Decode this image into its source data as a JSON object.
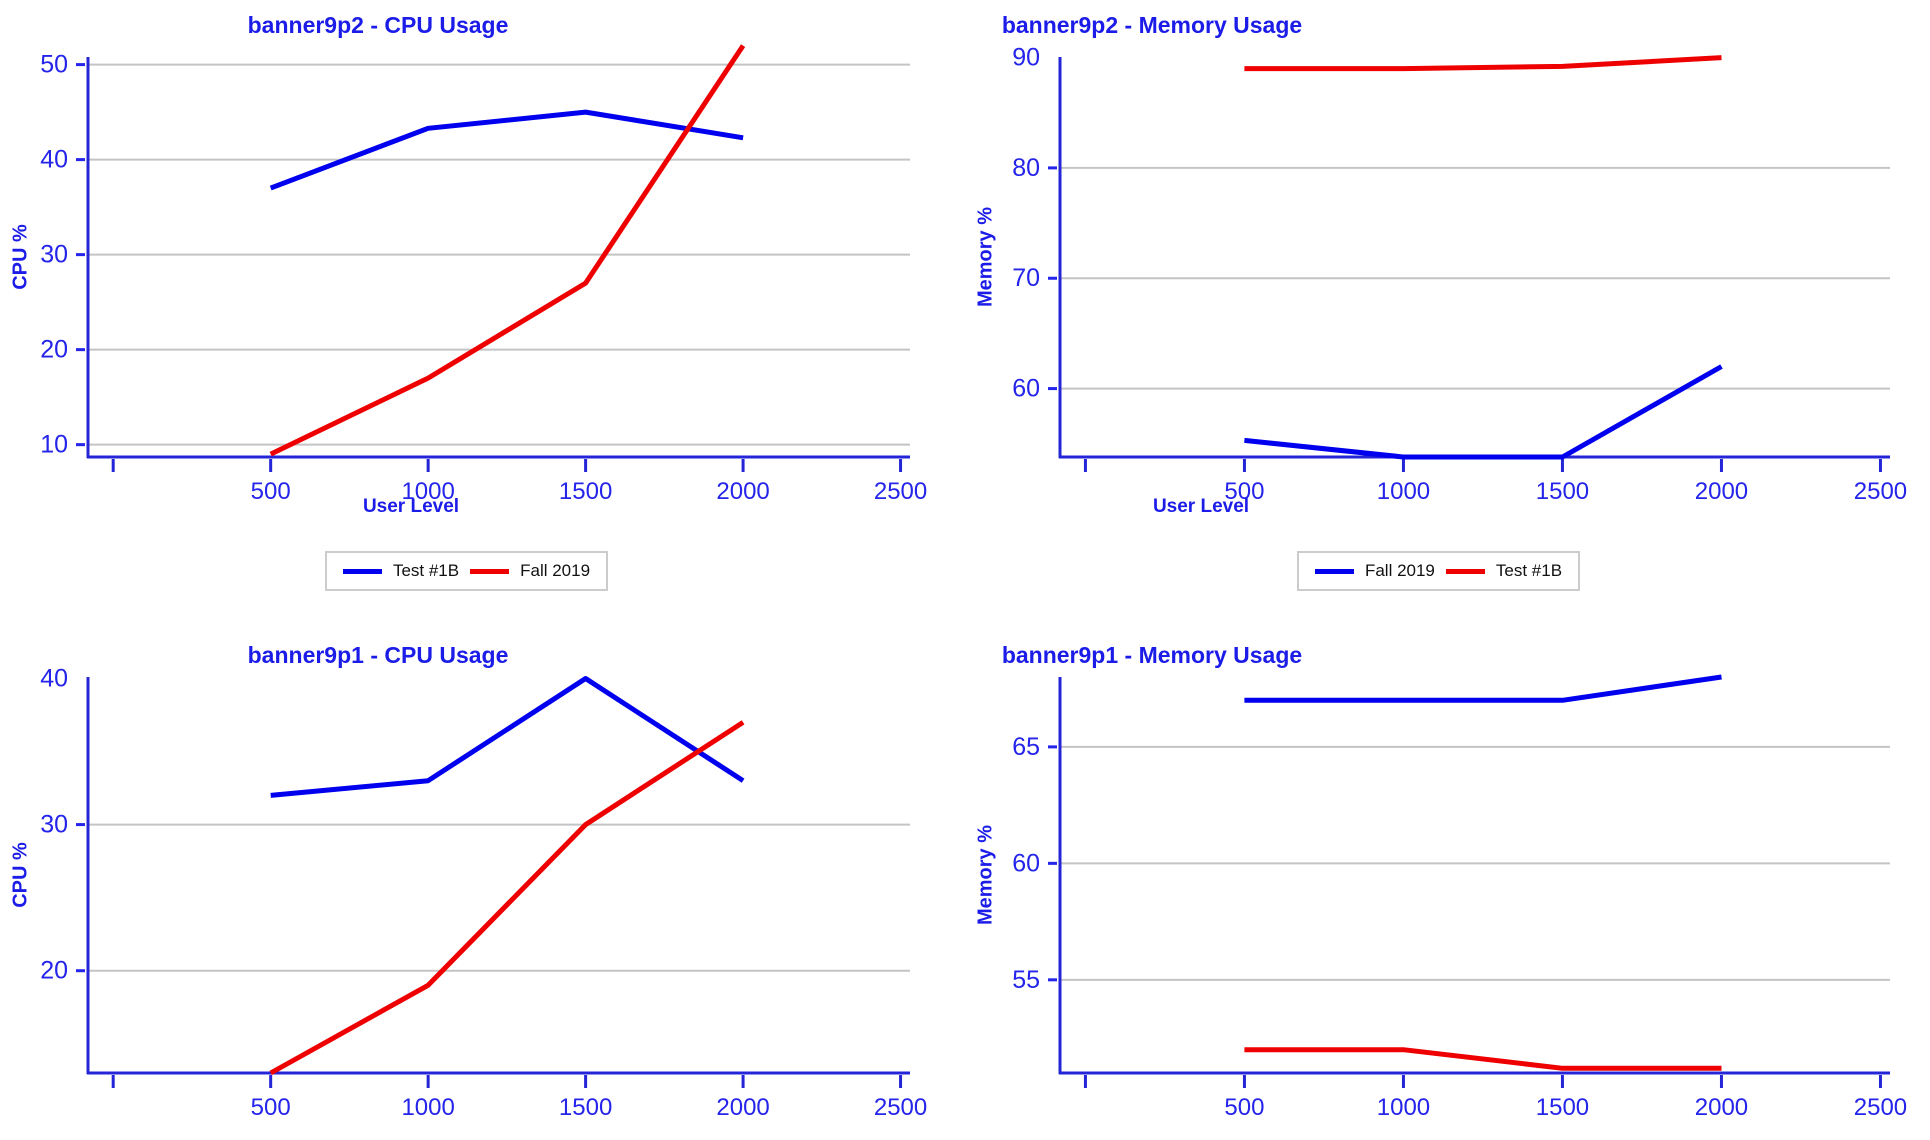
{
  "colors": {
    "blue_line": "#0000ee",
    "red_line": "#ee0000",
    "axis": "#2525d8",
    "grid": "#c4c4c4",
    "title_text": "#1c1ce8",
    "tick_text": "#2424ea",
    "legend_border": "#cccccc",
    "legend_text": "#111111"
  },
  "chart_data": [
    {
      "type": "line",
      "title": "banner9p2 - CPU Usage",
      "ylabel": "CPU %",
      "xlabel": "User Level",
      "x": [
        500,
        1000,
        1500,
        2000
      ],
      "series": [
        {
          "name": "Test #1B",
          "color": "#0000ee",
          "values": [
            37,
            43.3,
            45,
            42.3
          ]
        },
        {
          "name": "Fall 2019",
          "color": "#ee0000",
          "values": [
            9,
            17,
            27,
            52
          ]
        }
      ],
      "xlim": [
        -80,
        2530
      ],
      "ylim": [
        8.7,
        50.8
      ],
      "yticks": [
        {
          "v": 10,
          "grid": true,
          "dash": true
        },
        {
          "v": 20,
          "grid": true,
          "dash": true
        },
        {
          "v": 30,
          "grid": true,
          "dash": true
        },
        {
          "v": 40,
          "grid": true,
          "dash": true
        },
        {
          "v": 50,
          "grid": true,
          "dash": true
        }
      ],
      "xticks": [
        {
          "v": 0,
          "label": ""
        },
        {
          "v": 500,
          "label": "500"
        },
        {
          "v": 1000,
          "label": "1000"
        },
        {
          "v": 1500,
          "label": "1500"
        },
        {
          "v": 2000,
          "label": "2000"
        },
        {
          "v": 2500,
          "label": "2500"
        }
      ],
      "legend_position": "bottom"
    },
    {
      "type": "line",
      "title": "banner9p2 - Memory Usage",
      "ylabel": "Memory %",
      "xlabel": "User Level",
      "x": [
        500,
        1000,
        1500,
        2000
      ],
      "series": [
        {
          "name": "Fall 2019",
          "color": "#0000ee",
          "values": [
            55.3,
            53.8,
            53.8,
            62
          ]
        },
        {
          "name": "Test #1B",
          "color": "#ee0000",
          "values": [
            89,
            89,
            89.2,
            90
          ]
        }
      ],
      "xlim": [
        -80,
        2530
      ],
      "ylim": [
        53.8,
        90.05
      ],
      "yticks": [
        {
          "v": 60,
          "grid": true,
          "dash": true
        },
        {
          "v": 70,
          "grid": true,
          "dash": true
        },
        {
          "v": 80,
          "grid": true,
          "dash": true
        },
        {
          "v": 90,
          "grid": false,
          "dash": false
        }
      ],
      "xticks": [
        {
          "v": 0,
          "label": ""
        },
        {
          "v": 500,
          "label": "500"
        },
        {
          "v": 1000,
          "label": "1000"
        },
        {
          "v": 1500,
          "label": "1500"
        },
        {
          "v": 2000,
          "label": "2000"
        },
        {
          "v": 2500,
          "label": "2500"
        }
      ],
      "legend_position": "bottom"
    },
    {
      "type": "line",
      "title": "banner9p1 - CPU Usage",
      "ylabel": "CPU %",
      "x": [
        500,
        1000,
        1500,
        2000
      ],
      "series": [
        {
          "color": "#0000ee",
          "values": [
            32,
            33,
            40,
            33
          ]
        },
        {
          "color": "#ee0000",
          "values": [
            13,
            19,
            30,
            37
          ]
        }
      ],
      "xlim": [
        -80,
        2530
      ],
      "ylim": [
        13,
        40.1
      ],
      "yticks": [
        {
          "v": 20,
          "grid": true,
          "dash": true
        },
        {
          "v": 30,
          "grid": true,
          "dash": true
        },
        {
          "v": 40,
          "grid": false,
          "dash": false
        }
      ],
      "xticks": [
        {
          "v": 0,
          "label": ""
        },
        {
          "v": 500,
          "label": "500"
        },
        {
          "v": 1000,
          "label": "1000"
        },
        {
          "v": 1500,
          "label": "1500"
        },
        {
          "v": 2000,
          "label": "2000"
        },
        {
          "v": 2500,
          "label": "2500"
        }
      ]
    },
    {
      "type": "line",
      "title": "banner9p1 - Memory Usage",
      "ylabel": "Memory %",
      "x": [
        500,
        1000,
        1500,
        2000
      ],
      "series": [
        {
          "color": "#0000ee",
          "values": [
            67,
            67,
            67,
            68
          ]
        },
        {
          "color": "#ee0000",
          "values": [
            52,
            52,
            51.2,
            51.2
          ]
        }
      ],
      "xlim": [
        -80,
        2530
      ],
      "ylim": [
        51,
        68
      ],
      "yticks": [
        {
          "v": 55,
          "grid": true,
          "dash": true
        },
        {
          "v": 60,
          "grid": true,
          "dash": true
        },
        {
          "v": 65,
          "grid": true,
          "dash": true
        }
      ],
      "xticks": [
        {
          "v": 0,
          "label": ""
        },
        {
          "v": 500,
          "label": "500"
        },
        {
          "v": 1000,
          "label": "1000"
        },
        {
          "v": 1500,
          "label": "1500"
        },
        {
          "v": 2000,
          "label": "2000"
        },
        {
          "v": 2500,
          "label": "2500"
        }
      ]
    }
  ]
}
